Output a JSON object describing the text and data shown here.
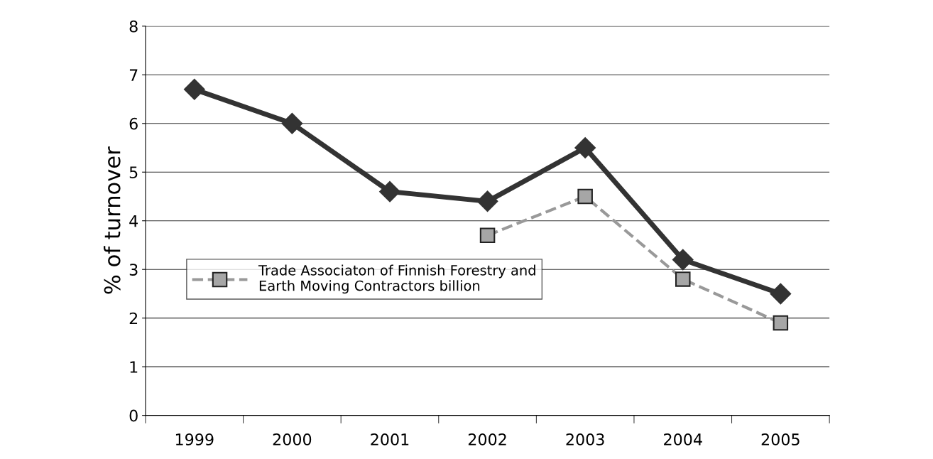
{
  "chart_data": {
    "type": "line",
    "ylabel": "% of turnover",
    "categories": [
      "1999",
      "2000",
      "2001",
      "2002",
      "2003",
      "2004",
      "2005"
    ],
    "series": [
      {
        "color": "#333333",
        "marker": "diamond",
        "line_style": "solid",
        "values": [
          6.7,
          6.0,
          4.6,
          4.4,
          5.5,
          3.2,
          2.5
        ]
      },
      {
        "name": "Trade Associaton of Finnish Forestry and\nEarth Moving Contractors billion",
        "color": "#999999",
        "marker": "square",
        "line_style": "dashed",
        "values": [
          null,
          null,
          null,
          3.7,
          4.5,
          2.8,
          1.9
        ]
      }
    ],
    "ylim": [
      0,
      8
    ],
    "yticks": [
      0,
      1,
      2,
      3,
      4,
      5,
      6,
      7,
      8
    ],
    "grid": "y",
    "legend": "left"
  }
}
